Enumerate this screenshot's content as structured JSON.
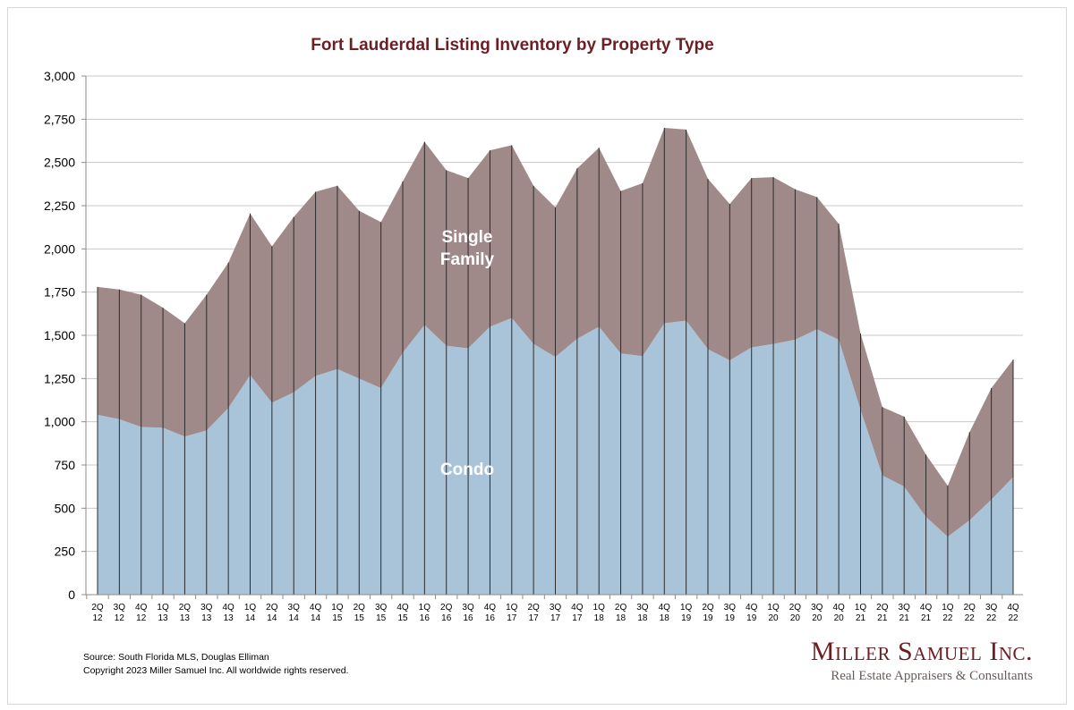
{
  "chart_data": {
    "type": "area",
    "title": "Fort Lauderdal Listing Inventory by Property Type",
    "categories": [
      "2Q\n12",
      "3Q\n12",
      "4Q\n12",
      "1Q\n13",
      "2Q\n13",
      "3Q\n13",
      "4Q\n13",
      "1Q\n14",
      "2Q\n14",
      "3Q\n14",
      "4Q\n14",
      "1Q\n15",
      "2Q\n15",
      "3Q\n15",
      "4Q\n15",
      "1Q\n16",
      "2Q\n16",
      "3Q\n16",
      "4Q\n16",
      "1Q\n17",
      "2Q\n17",
      "3Q\n17",
      "4Q\n17",
      "1Q\n18",
      "2Q\n18",
      "3Q\n18",
      "4Q\n18",
      "1Q\n19",
      "2Q\n19",
      "3Q\n19",
      "4Q\n19",
      "1Q\n20",
      "2Q\n20",
      "3Q\n20",
      "4Q\n20",
      "1Q\n21",
      "2Q\n21",
      "3Q\n21",
      "4Q\n21",
      "1Q\n22",
      "2Q\n22",
      "3Q\n22",
      "4Q\n22"
    ],
    "series": [
      {
        "name": "Condo",
        "color": "#a9c4d9",
        "values": [
          1040,
          1015,
          970,
          965,
          915,
          950,
          1080,
          1270,
          1110,
          1170,
          1265,
          1305,
          1250,
          1195,
          1400,
          1560,
          1440,
          1425,
          1550,
          1600,
          1450,
          1375,
          1480,
          1550,
          1395,
          1380,
          1570,
          1585,
          1420,
          1355,
          1430,
          1450,
          1475,
          1535,
          1475,
          1070,
          690,
          625,
          450,
          335,
          430,
          550,
          680
        ]
      },
      {
        "name": "Single Family",
        "color": "#a08a89",
        "values": [
          740,
          750,
          765,
          695,
          655,
          785,
          840,
          935,
          905,
          1015,
          1065,
          1060,
          970,
          960,
          990,
          1060,
          1015,
          985,
          1020,
          1000,
          915,
          865,
          985,
          1035,
          940,
          1000,
          1130,
          1105,
          985,
          905,
          980,
          965,
          870,
          765,
          670,
          440,
          395,
          405,
          360,
          295,
          510,
          645,
          680
        ]
      }
    ],
    "ylim": [
      0,
      3000
    ],
    "yticks": [
      0,
      250,
      500,
      750,
      1000,
      1250,
      1500,
      1750,
      2000,
      2250,
      2500,
      2750,
      3000
    ],
    "ytick_labels": [
      "0",
      "250",
      "500",
      "750",
      "1,000",
      "1,250",
      "1,500",
      "1,750",
      "2,000",
      "2,250",
      "2,500",
      "2,750",
      "3,000"
    ],
    "grid": true,
    "labels": {
      "single_family_line1": "Single",
      "single_family_line2": "Family",
      "condo": "Condo"
    }
  },
  "footer": {
    "source": "Source: South Florida MLS, Douglas Elliman",
    "copyright": "Copyright 2023 Miller Samuel Inc.  All worldwide rights reserved."
  },
  "brand": {
    "name": "Miller Samuel Inc.",
    "tagline": "Real Estate Appraisers & Consultants"
  }
}
